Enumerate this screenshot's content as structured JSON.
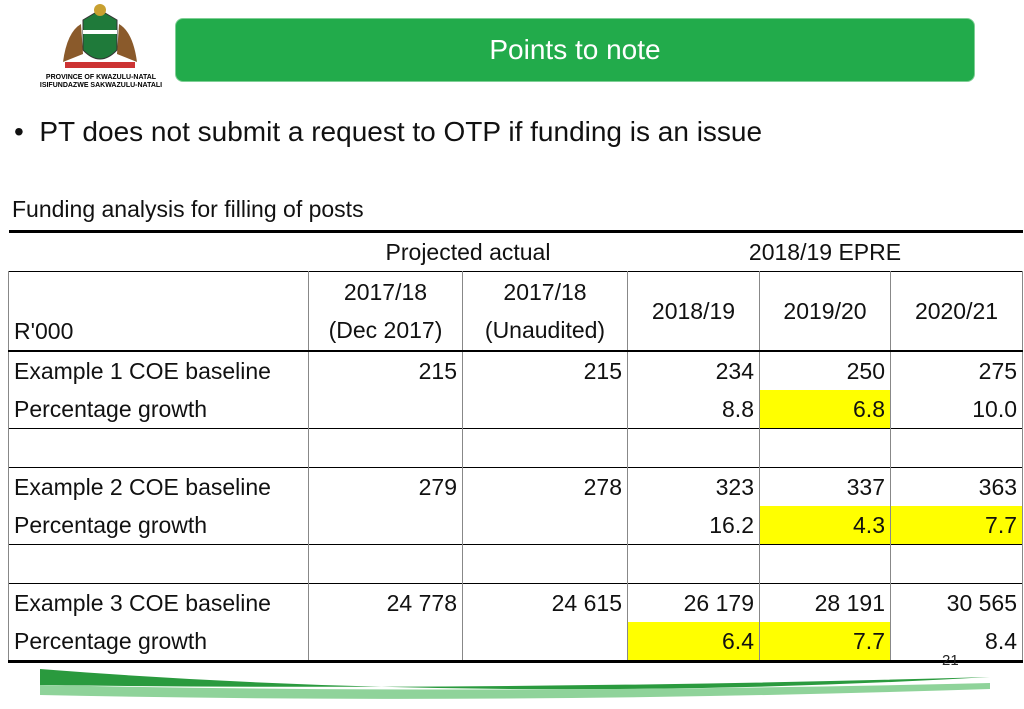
{
  "header": {
    "logo_lines": [
      "PROVINCE OF KWAZULU-NATAL",
      "ISIFUNDAZWE SAKWAZULU-NATALI"
    ],
    "title": "Points to note"
  },
  "bullet": "PT does not submit a request to  OTP if funding is an issue",
  "table": {
    "caption": "Funding analysis for filling of posts",
    "group_headers": [
      "Projected actual",
      "2018/19 EPRE"
    ],
    "column_headers": [
      "R'000",
      "2017/18\n(Dec 2017)",
      "2017/18\n(Unaudited)",
      "2018/19",
      "2019/20",
      "2020/21"
    ],
    "groups": [
      {
        "baseline": {
          "label": "Example 1 COE baseline",
          "values": [
            "215",
            "215",
            "234",
            "250",
            "275"
          ]
        },
        "growth": {
          "label": "Percentage growth",
          "values": [
            "8.8",
            "6.8",
            "10.0"
          ]
        }
      },
      {
        "baseline": {
          "label": "Example 2 COE baseline",
          "values": [
            "279",
            "278",
            "323",
            "337",
            "363"
          ]
        },
        "growth": {
          "label": "Percentage growth",
          "values": [
            "16.2",
            "4.3",
            "7.7"
          ]
        }
      },
      {
        "baseline": {
          "label": "Example 3 COE baseline",
          "values": [
            "24 778",
            "24 615",
            "26 179",
            "28 191",
            "30 565"
          ]
        },
        "growth": {
          "label": "Percentage growth",
          "values": [
            "6.4",
            "7.7",
            "8.4"
          ]
        }
      }
    ]
  },
  "page_number": "21"
}
